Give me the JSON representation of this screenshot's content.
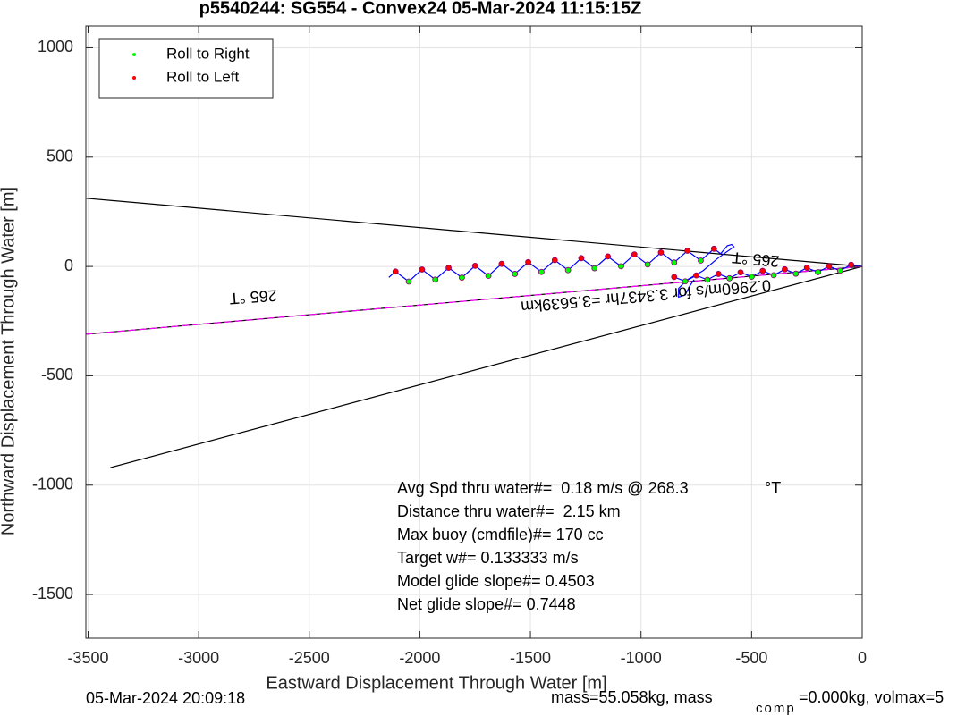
{
  "chart_data": {
    "type": "line",
    "title": "p5540244: SG554 - Convex24 05-Mar-2024 11:15:15Z",
    "xlabel": "Eastward Displacement Through Water [m]",
    "ylabel": "Northward Displacement Through Water [m]",
    "xlim": [
      -3510,
      0
    ],
    "ylim": [
      -1700,
      1100
    ],
    "xticks": [
      -3500,
      -3000,
      -2500,
      -2000,
      -1500,
      -1000,
      -500,
      0
    ],
    "yticks": [
      -1500,
      -1000,
      -500,
      0,
      500,
      1000
    ],
    "grid": true,
    "legend": "upper left",
    "series": [
      {
        "color": "#000000",
        "x": [
          0,
          -3510
        ],
        "y": [
          0,
          312
        ]
      },
      {
        "color": "#000000",
        "x": [
          0,
          -3400
        ],
        "y": [
          0,
          -920
        ]
      },
      {
        "color": "#000000",
        "x": [
          0,
          -3510
        ],
        "y": [
          0,
          -310
        ]
      },
      {
        "color": "#ff00ff",
        "style": "dashed",
        "x": [
          0,
          -3510
        ],
        "y": [
          0,
          -310
        ]
      },
      {
        "color": "#0000ff",
        "x": [
          -2140,
          -2110,
          -2080,
          -2050,
          -2020,
          -1990,
          -1960,
          -1930,
          -1900,
          -1870,
          -1840,
          -1810,
          -1780,
          -1750,
          -1720,
          -1690,
          -1660,
          -1630,
          -1600,
          -1570,
          -1540,
          -1510,
          -1480,
          -1450,
          -1420,
          -1390,
          -1360,
          -1330,
          -1300,
          -1270,
          -1240,
          -1210,
          -1180,
          -1150,
          -1120,
          -1090,
          -1060,
          -1030,
          -1000,
          -970,
          -940,
          -910,
          -880,
          -850,
          -820,
          -790,
          -760,
          -730,
          -700,
          -670,
          -640,
          -610,
          -590,
          -580,
          -650,
          -720,
          -790,
          -830,
          -830,
          -800,
          -780,
          -760
        ],
        "y": [
          -50,
          -23,
          -46,
          -69,
          -41,
          -14,
          -37,
          -60,
          -33,
          -6,
          -28,
          -51,
          -24,
          3,
          -20,
          -43,
          -15,
          12,
          -11,
          -34,
          -7,
          20,
          -3,
          -25,
          2,
          29,
          6,
          -17,
          10,
          38,
          15,
          -8,
          19,
          46,
          23,
          1,
          28,
          55,
          32,
          9,
          36,
          64,
          41,
          18,
          45,
          72,
          49,
          27,
          54,
          81,
          58,
          95,
          100,
          90,
          40,
          -20,
          -60,
          -100,
          -140,
          -130,
          -90,
          -60
        ]
      },
      {
        "color": "#0000ff",
        "x": [
          -850,
          -800,
          -750,
          -700,
          -650,
          -600,
          -550,
          -500,
          -450,
          -400,
          -350,
          -300,
          -250,
          -200,
          -150,
          -100,
          -50,
          0
        ],
        "y": [
          -48,
          -68,
          -41,
          -61,
          -34,
          -54,
          -27,
          -47,
          -20,
          -40,
          -13,
          -33,
          -6,
          -26,
          1,
          -19,
          8,
          0
        ]
      },
      {
        "name": "Roll to Right",
        "color": "#00ff00",
        "marker": "dot",
        "x": [
          -2050,
          -1930,
          -1810,
          -1690,
          -1570,
          -1450,
          -1330,
          -1210,
          -1090,
          -970,
          -850,
          -730,
          -800,
          -700,
          -600,
          -500,
          -400,
          -300,
          -200,
          -100
        ],
        "y": [
          -69,
          -60,
          -51,
          -43,
          -34,
          -25,
          -17,
          -8,
          1,
          9,
          18,
          27,
          -68,
          -61,
          -54,
          -47,
          -40,
          -33,
          -26,
          -19
        ]
      },
      {
        "name": "Roll to Left",
        "color": "#ff0000",
        "marker": "dot",
        "x": [
          -2110,
          -1990,
          -1870,
          -1750,
          -1630,
          -1510,
          -1390,
          -1270,
          -1150,
          -1030,
          -910,
          -790,
          -670,
          -850,
          -750,
          -650,
          -550,
          -450,
          -350,
          -250,
          -150,
          -50
        ],
        "y": [
          -23,
          -14,
          -6,
          3,
          12,
          20,
          29,
          38,
          46,
          55,
          64,
          72,
          81,
          -48,
          -41,
          -34,
          -27,
          -20,
          -13,
          -6,
          1,
          8
        ]
      }
    ],
    "annotations": [
      "265 °T",
      "265 °T",
      "0.2960m/s for 3.3437hr =3.5639km"
    ],
    "stats": [
      "Avg Spd thru water#=  0.18 m/s @ 268.3",
      "°T",
      "Distance thru water#=  2.15 km",
      "Max buoy (cmdfile)#= 170 cc",
      "Target w#= 0.133333 m/s",
      "Model glide slope#= 0.4503",
      "Net glide slope#= 0.7448"
    ],
    "footer": [
      "05-Mar-2024 20:09:18",
      "mass=55.058kg, mass",
      "comp",
      "=0.000kg, volmax=5"
    ]
  }
}
